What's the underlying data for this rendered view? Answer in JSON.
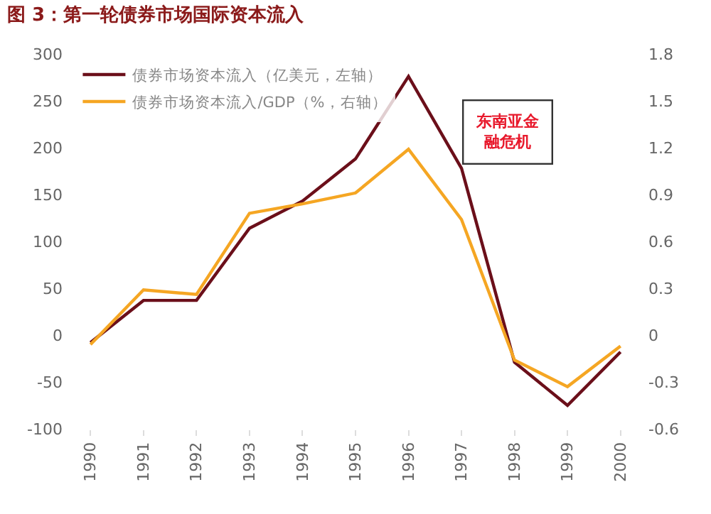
{
  "chart_data": {
    "type": "line",
    "title": "图 3：第一轮债券市场国际资本流入",
    "categories": [
      "1990",
      "1991",
      "1992",
      "1993",
      "1994",
      "1995",
      "1996",
      "1997",
      "1998",
      "1999",
      "2000"
    ],
    "series": [
      {
        "name": "债券市场资本流入（亿美元，左轴）",
        "color": "#6b0f1a",
        "values": [
          -8,
          37,
          37,
          114,
          143,
          188,
          276,
          178,
          -29,
          -75,
          -18
        ]
      },
      {
        "name": "债券市场资本流入/GDP（%，右轴）",
        "color": "#f5a623",
        "axis": "y2",
        "values": [
          -0.06,
          0.29,
          0.26,
          0.78,
          0.84,
          0.91,
          1.19,
          0.74,
          -0.16,
          -0.33,
          -0.07
        ]
      }
    ],
    "ylim": [
      -100,
      300
    ],
    "yticks": [
      -100,
      -50,
      0,
      50,
      100,
      150,
      200,
      250,
      300
    ],
    "y2lim": [
      -0.6,
      1.8
    ],
    "y2ticks": [
      -0.6,
      -0.3,
      0,
      0.3,
      0.6,
      0.9,
      1.2,
      1.5,
      1.8
    ],
    "annotations": [
      "东南亚金融危机"
    ],
    "legend": "top left",
    "marker": "none",
    "line_style": "solid"
  }
}
